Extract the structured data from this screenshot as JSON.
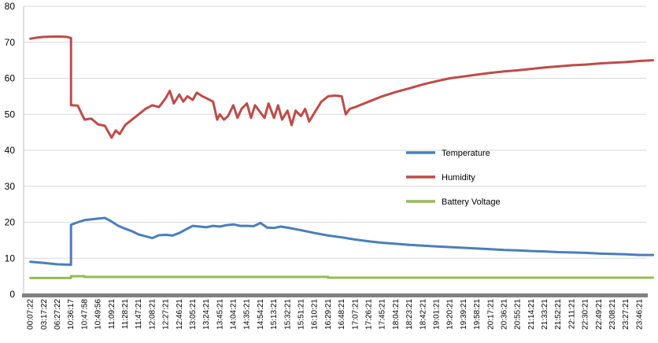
{
  "chart_data": {
    "type": "line",
    "title": "",
    "xlabel": "",
    "ylabel": "",
    "ylim": [
      0,
      80
    ],
    "yticks": [
      0,
      10,
      20,
      30,
      40,
      50,
      60,
      70,
      80
    ],
    "grid": "horizontal",
    "legend_position": "center-right",
    "x_tick_labels": [
      "00:07:22",
      "03:17:22",
      "06:27:22",
      "10:36:17",
      "10:47:58",
      "10:49:56",
      "11:09:21",
      "11:28:21",
      "11:47:21",
      "12:08:21",
      "12:27:21",
      "12:46:21",
      "13:05:21",
      "13:24:21",
      "13:45:21",
      "14:04:21",
      "14:35:21",
      "14:54:21",
      "15:13:21",
      "15:32:21",
      "15:51:21",
      "16:10:21",
      "16:29:21",
      "16:48:21",
      "17:07:21",
      "17:26:21",
      "17:45:21",
      "18:04:21",
      "18:23:21",
      "18:42:21",
      "19:01:21",
      "19:20:21",
      "19:39:21",
      "19:58:21",
      "20:17:21",
      "20:36:21",
      "20:55:21",
      "21:14:21",
      "21:33:21",
      "21:52:21",
      "22:11:21",
      "22:30:21",
      "22:49:21",
      "23:08:21",
      "23:27:21",
      "23:46:21"
    ],
    "series": [
      {
        "name": "Temperature",
        "color": "#4a7ebb",
        "points": [
          [
            0,
            9.0
          ],
          [
            1,
            8.7
          ],
          [
            2,
            8.3
          ],
          [
            3,
            8.2
          ],
          [
            3,
            19.3
          ],
          [
            3.5,
            20.0
          ],
          [
            4,
            20.6
          ],
          [
            5,
            21.0
          ],
          [
            5.5,
            21.2
          ],
          [
            6,
            20.2
          ],
          [
            6.5,
            19.0
          ],
          [
            7,
            18.2
          ],
          [
            7.5,
            17.5
          ],
          [
            8,
            16.6
          ],
          [
            8.5,
            16.1
          ],
          [
            9,
            15.6
          ],
          [
            9.5,
            16.4
          ],
          [
            10,
            16.5
          ],
          [
            10.5,
            16.3
          ],
          [
            11,
            17.0
          ],
          [
            11.5,
            18.0
          ],
          [
            12,
            19.0
          ],
          [
            12.5,
            18.8
          ],
          [
            13,
            18.6
          ],
          [
            13.5,
            19.0
          ],
          [
            14,
            18.8
          ],
          [
            14.5,
            19.2
          ],
          [
            15,
            19.4
          ],
          [
            15.5,
            19.0
          ],
          [
            16,
            19.0
          ],
          [
            16.5,
            18.9
          ],
          [
            17,
            19.8
          ],
          [
            17.5,
            18.5
          ],
          [
            18,
            18.4
          ],
          [
            18.5,
            18.8
          ],
          [
            19,
            18.5
          ],
          [
            20,
            17.8
          ],
          [
            21,
            17.0
          ],
          [
            22,
            16.3
          ],
          [
            23,
            15.8
          ],
          [
            24,
            15.2
          ],
          [
            25,
            14.7
          ],
          [
            26,
            14.3
          ],
          [
            27,
            14.0
          ],
          [
            28,
            13.7
          ],
          [
            29,
            13.5
          ],
          [
            30,
            13.3
          ],
          [
            31,
            13.1
          ],
          [
            32,
            12.9
          ],
          [
            33,
            12.7
          ],
          [
            34,
            12.5
          ],
          [
            35,
            12.3
          ],
          [
            36,
            12.2
          ],
          [
            37,
            12.0
          ],
          [
            38,
            11.9
          ],
          [
            39,
            11.7
          ],
          [
            40,
            11.6
          ],
          [
            41,
            11.5
          ],
          [
            42,
            11.3
          ],
          [
            43,
            11.2
          ],
          [
            44,
            11.1
          ],
          [
            45,
            10.9
          ],
          [
            46,
            10.9
          ]
        ]
      },
      {
        "name": "Humidity",
        "color": "#be4b48",
        "points": [
          [
            0,
            71.0
          ],
          [
            0.5,
            71.3
          ],
          [
            1,
            71.5
          ],
          [
            2,
            71.6
          ],
          [
            2.7,
            71.5
          ],
          [
            3,
            71.2
          ],
          [
            3,
            52.5
          ],
          [
            3.5,
            52.4
          ],
          [
            4,
            48.5
          ],
          [
            4.5,
            48.8
          ],
          [
            5,
            47.2
          ],
          [
            5.5,
            46.8
          ],
          [
            6,
            43.5
          ],
          [
            6.3,
            45.5
          ],
          [
            6.6,
            44.5
          ],
          [
            7,
            47.0
          ],
          [
            7.5,
            48.5
          ],
          [
            8,
            50.0
          ],
          [
            8.5,
            51.5
          ],
          [
            9,
            52.5
          ],
          [
            9.5,
            52.0
          ],
          [
            10,
            54.5
          ],
          [
            10.3,
            56.5
          ],
          [
            10.6,
            53.0
          ],
          [
            11,
            55.5
          ],
          [
            11.3,
            53.5
          ],
          [
            11.6,
            55.0
          ],
          [
            12,
            54.0
          ],
          [
            12.3,
            56.0
          ],
          [
            12.7,
            55.0
          ],
          [
            13,
            54.5
          ],
          [
            13.5,
            53.5
          ],
          [
            13.8,
            48.5
          ],
          [
            14,
            50.0
          ],
          [
            14.3,
            48.5
          ],
          [
            14.6,
            49.5
          ],
          [
            15,
            52.5
          ],
          [
            15.3,
            49.0
          ],
          [
            15.6,
            51.5
          ],
          [
            16,
            53.0
          ],
          [
            16.3,
            49.0
          ],
          [
            16.6,
            52.5
          ],
          [
            17,
            50.5
          ],
          [
            17.3,
            49.0
          ],
          [
            17.6,
            53.0
          ],
          [
            18,
            49.0
          ],
          [
            18.3,
            52.5
          ],
          [
            18.6,
            48.5
          ],
          [
            19,
            51.0
          ],
          [
            19.3,
            47.0
          ],
          [
            19.6,
            51.0
          ],
          [
            20,
            49.5
          ],
          [
            20.3,
            51.5
          ],
          [
            20.6,
            48.0
          ],
          [
            21,
            50.5
          ],
          [
            21.5,
            53.5
          ],
          [
            22,
            55.0
          ],
          [
            22.5,
            55.2
          ],
          [
            23,
            55.0
          ],
          [
            23.3,
            50.0
          ],
          [
            23.6,
            51.5
          ],
          [
            24,
            52.0
          ],
          [
            25,
            53.5
          ],
          [
            26,
            55.0
          ],
          [
            27,
            56.2
          ],
          [
            28,
            57.2
          ],
          [
            29,
            58.3
          ],
          [
            30,
            59.2
          ],
          [
            31,
            60.0
          ],
          [
            32,
            60.5
          ],
          [
            33,
            61.0
          ],
          [
            34,
            61.5
          ],
          [
            35,
            61.9
          ],
          [
            36,
            62.2
          ],
          [
            37,
            62.6
          ],
          [
            38,
            63.0
          ],
          [
            39,
            63.3
          ],
          [
            40,
            63.6
          ],
          [
            41,
            63.8
          ],
          [
            42,
            64.1
          ],
          [
            43,
            64.3
          ],
          [
            44,
            64.5
          ],
          [
            45,
            64.8
          ],
          [
            46,
            65.0
          ]
        ]
      },
      {
        "name": "Battery Voltage",
        "color": "#98b954",
        "points": [
          [
            0,
            4.5
          ],
          [
            3,
            4.5
          ],
          [
            3,
            5.0
          ],
          [
            4,
            5.0
          ],
          [
            4,
            4.8
          ],
          [
            22,
            4.8
          ],
          [
            22,
            4.6
          ],
          [
            46,
            4.6
          ]
        ]
      }
    ]
  }
}
